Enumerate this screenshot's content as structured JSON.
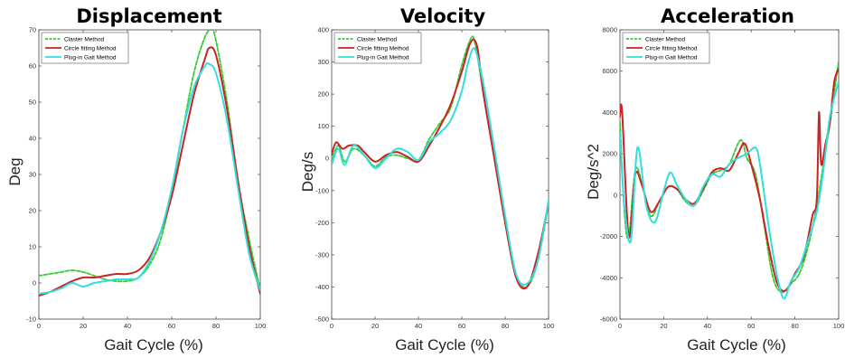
{
  "chart_data": [
    {
      "type": "line",
      "title": "Displacement",
      "xlabel": "Gait Cycle (%)",
      "ylabel": "Deg",
      "xlim": [
        0,
        100
      ],
      "ylim": [
        -10,
        70
      ],
      "xticks": [
        0,
        20,
        40,
        60,
        80,
        100
      ],
      "yticks": [
        -10,
        0,
        10,
        20,
        30,
        40,
        50,
        60,
        70
      ],
      "legend_position": "top-left",
      "series": [
        {
          "name": "Claster Method",
          "color": "#33cc33",
          "dash": true,
          "x": [
            0,
            5,
            10,
            15,
            20,
            25,
            30,
            35,
            40,
            45,
            50,
            55,
            60,
            65,
            70,
            75,
            78,
            80,
            85,
            90,
            95,
            100
          ],
          "y": [
            2,
            2.5,
            3,
            3.5,
            3,
            2,
            1,
            0.5,
            0.5,
            1.5,
            5,
            12,
            25,
            42,
            58,
            68,
            70,
            67,
            50,
            28,
            12,
            -2
          ]
        },
        {
          "name": "Circle fitting Method",
          "color": "#cc2222",
          "dash": false,
          "x": [
            0,
            5,
            10,
            15,
            20,
            25,
            30,
            35,
            40,
            45,
            50,
            55,
            60,
            65,
            70,
            75,
            77,
            80,
            85,
            90,
            95,
            100
          ],
          "y": [
            -3.5,
            -2.5,
            -1,
            0.5,
            1.5,
            1.5,
            2,
            2.5,
            2.5,
            3.5,
            7,
            14,
            24,
            38,
            52,
            62,
            65,
            63,
            48,
            28,
            10,
            -3
          ]
        },
        {
          "name": "Plug-in Gait Method",
          "color": "#33dddd",
          "dash": false,
          "x": [
            0,
            5,
            10,
            15,
            20,
            25,
            30,
            35,
            40,
            45,
            50,
            55,
            60,
            65,
            70,
            75,
            77,
            80,
            85,
            90,
            95,
            100
          ],
          "y": [
            -3,
            -2.5,
            -1.5,
            0,
            -1,
            0,
            0.5,
            1,
            1,
            1.5,
            6,
            14,
            26,
            42,
            54,
            60,
            60.5,
            58,
            45,
            26,
            8,
            -2
          ]
        }
      ]
    },
    {
      "type": "line",
      "title": "Velocity",
      "xlabel": "Gait Cycle (%)",
      "ylabel": "Deg/s",
      "xlim": [
        0,
        100
      ],
      "ylim": [
        -500,
        400
      ],
      "xticks": [
        0,
        20,
        40,
        60,
        80,
        100
      ],
      "yticks": [
        -500,
        -400,
        -300,
        -200,
        -100,
        0,
        100,
        200,
        300,
        400
      ],
      "legend_position": "top-left",
      "series": [
        {
          "name": "Claster Method",
          "color": "#33cc33",
          "dash": true,
          "x": [
            0,
            3,
            6,
            10,
            15,
            20,
            25,
            30,
            35,
            40,
            45,
            50,
            55,
            60,
            64,
            66,
            70,
            75,
            80,
            85,
            90,
            95,
            100
          ],
          "y": [
            -10,
            40,
            -10,
            30,
            10,
            -25,
            5,
            10,
            0,
            -5,
            60,
            110,
            160,
            290,
            370,
            360,
            200,
            0,
            -200,
            -360,
            -400,
            -320,
            -140
          ]
        },
        {
          "name": "Circle fitting Method",
          "color": "#cc2222",
          "dash": false,
          "x": [
            0,
            2,
            5,
            8,
            12,
            15,
            20,
            25,
            30,
            35,
            40,
            45,
            50,
            55,
            60,
            64,
            67,
            70,
            75,
            80,
            85,
            90,
            95,
            100
          ],
          "y": [
            10,
            50,
            30,
            40,
            40,
            20,
            -10,
            10,
            20,
            5,
            -10,
            40,
            100,
            170,
            270,
            360,
            350,
            200,
            0,
            -200,
            -370,
            -400,
            -300,
            -140
          ]
        },
        {
          "name": "Plug-in Gait Method",
          "color": "#33dddd",
          "dash": false,
          "x": [
            0,
            3,
            6,
            10,
            15,
            20,
            25,
            30,
            35,
            40,
            45,
            50,
            55,
            60,
            63,
            66,
            70,
            75,
            80,
            85,
            90,
            95,
            100
          ],
          "y": [
            -20,
            30,
            -20,
            40,
            10,
            -30,
            0,
            30,
            20,
            -5,
            50,
            80,
            120,
            210,
            300,
            340,
            230,
            30,
            -180,
            -360,
            -390,
            -320,
            -130
          ]
        }
      ]
    },
    {
      "type": "line",
      "title": "Acceleration",
      "xlabel": "Gait Cycle (%)",
      "ylabel": "Deg/s^2",
      "xlim": [
        0,
        100
      ],
      "ylim": [
        -6000,
        8000
      ],
      "xticks": [
        0,
        20,
        40,
        60,
        80,
        100
      ],
      "yticks": [
        -6000,
        -4000,
        -2000,
        0,
        2000,
        4000,
        6000,
        8000
      ],
      "legend_position": "top-left",
      "series": [
        {
          "name": "Claster Method",
          "color": "#33cc33",
          "dash": true,
          "x": [
            0,
            2,
            4,
            7,
            10,
            14,
            18,
            22,
            26,
            30,
            34,
            38,
            42,
            46,
            50,
            54,
            56,
            58,
            62,
            66,
            70,
            74,
            78,
            82,
            86,
            90,
            93,
            96,
            100
          ],
          "y": [
            3500,
            -800,
            -2000,
            1200,
            600,
            -1000,
            -300,
            400,
            300,
            -300,
            -500,
            200,
            1000,
            1200,
            1500,
            2500,
            2600,
            1800,
            1000,
            -1500,
            -4000,
            -4700,
            -4300,
            -3800,
            -2500,
            -500,
            1500,
            3500,
            6500
          ]
        },
        {
          "name": "Circle fitting Method",
          "color": "#cc2222",
          "dash": false,
          "x": [
            0,
            1,
            4,
            7,
            10,
            14,
            18,
            22,
            26,
            30,
            34,
            38,
            42,
            46,
            50,
            54,
            57,
            60,
            64,
            68,
            72,
            76,
            80,
            84,
            88,
            90,
            91,
            92,
            94,
            96,
            98,
            100
          ],
          "y": [
            3800,
            4000,
            -2000,
            1000,
            500,
            -800,
            -300,
            400,
            300,
            -200,
            -400,
            300,
            1100,
            1300,
            1200,
            2000,
            2500,
            1500,
            -200,
            -2500,
            -4300,
            -4600,
            -3800,
            -3000,
            -1000,
            -200,
            4000,
            1500,
            2500,
            3500,
            5500,
            6100
          ]
        },
        {
          "name": "Plug-in Gait Method",
          "color": "#33dddd",
          "dash": false,
          "x": [
            0,
            2,
            5,
            8,
            12,
            16,
            20,
            23,
            26,
            30,
            34,
            38,
            42,
            46,
            50,
            54,
            58,
            62,
            64,
            68,
            72,
            75,
            78,
            82,
            86,
            90,
            93,
            96,
            100
          ],
          "y": [
            3000,
            -500,
            -2200,
            2300,
            -500,
            -1300,
            200,
            1100,
            500,
            -200,
            -500,
            400,
            1000,
            900,
            1500,
            1800,
            2000,
            2300,
            1500,
            -1500,
            -4000,
            -5000,
            -4200,
            -3500,
            -2200,
            -800,
            1200,
            3800,
            5500
          ]
        }
      ]
    }
  ]
}
